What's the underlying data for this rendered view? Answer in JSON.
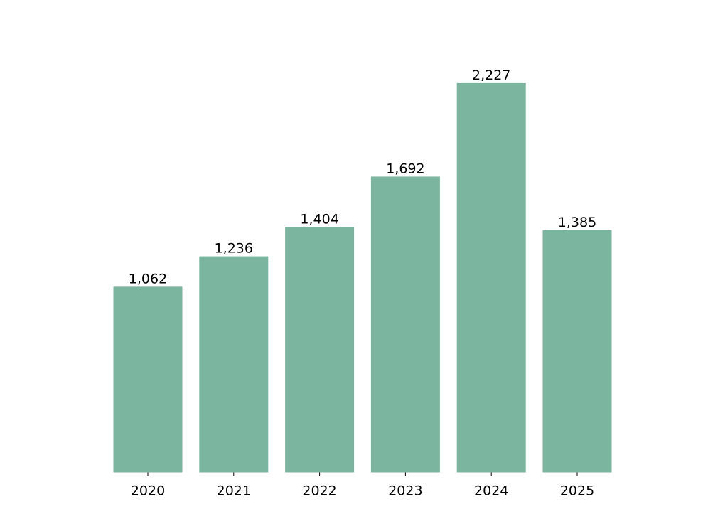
{
  "chart_data": {
    "type": "bar",
    "categories": [
      "2020",
      "2021",
      "2022",
      "2023",
      "2024",
      "2025"
    ],
    "values": [
      1062,
      1236,
      1404,
      1692,
      2227,
      1385
    ],
    "value_labels": [
      "1,062",
      "1,236",
      "1,404",
      "1,692",
      "2,227",
      "1,385"
    ],
    "color": "#7bb49f",
    "ylim": [
      0,
      2338
    ]
  }
}
